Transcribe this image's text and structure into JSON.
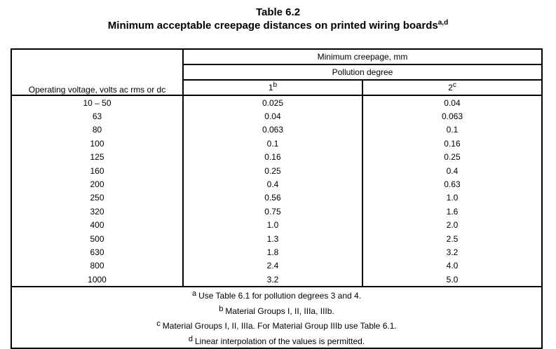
{
  "title": {
    "line1": "Table 6.2",
    "line2": "Minimum acceptable creepage distances on printed wiring boards",
    "line2_superscript": "a,d"
  },
  "header": {
    "voltage_label": "Operating voltage, volts ac rms or dc",
    "min_creepage_label": "Minimum creepage, mm",
    "pollution_degree_label": "Pollution degree",
    "col1_label": "1",
    "col1_superscript": "b",
    "col2_label": "2",
    "col2_superscript": "c"
  },
  "rows": [
    {
      "voltage": "10 – 50",
      "p1": "0.025",
      "p2": "0.04"
    },
    {
      "voltage": "63",
      "p1": "0.04",
      "p2": "0.063"
    },
    {
      "voltage": "80",
      "p1": "0.063",
      "p2": "0.1"
    },
    {
      "voltage": "100",
      "p1": "0.1",
      "p2": "0.16"
    },
    {
      "voltage": "125",
      "p1": "0.16",
      "p2": "0.25"
    },
    {
      "voltage": "160",
      "p1": "0.25",
      "p2": "0.4"
    },
    {
      "voltage": "200",
      "p1": "0.4",
      "p2": "0.63"
    },
    {
      "voltage": "250",
      "p1": "0.56",
      "p2": "1.0"
    },
    {
      "voltage": "320",
      "p1": "0.75",
      "p2": "1.6"
    },
    {
      "voltage": "400",
      "p1": "1.0",
      "p2": "2.0"
    },
    {
      "voltage": "500",
      "p1": "1.3",
      "p2": "2.5"
    },
    {
      "voltage": "630",
      "p1": "1.8",
      "p2": "3.2"
    },
    {
      "voltage": "800",
      "p1": "2.4",
      "p2": "4.0"
    },
    {
      "voltage": "1000",
      "p1": "3.2",
      "p2": "5.0"
    }
  ],
  "notes": [
    {
      "mark": "a",
      "text": "Use Table 6.1 for pollution degrees 3 and 4."
    },
    {
      "mark": "b",
      "text": "Material Groups I, II, IIIa, IIIb."
    },
    {
      "mark": "c",
      "text": "Material Groups I, II, IIIa. For Material Group IIIb use Table 6.1."
    },
    {
      "mark": "d",
      "text": "Linear interpolation of the values is permitted."
    }
  ]
}
